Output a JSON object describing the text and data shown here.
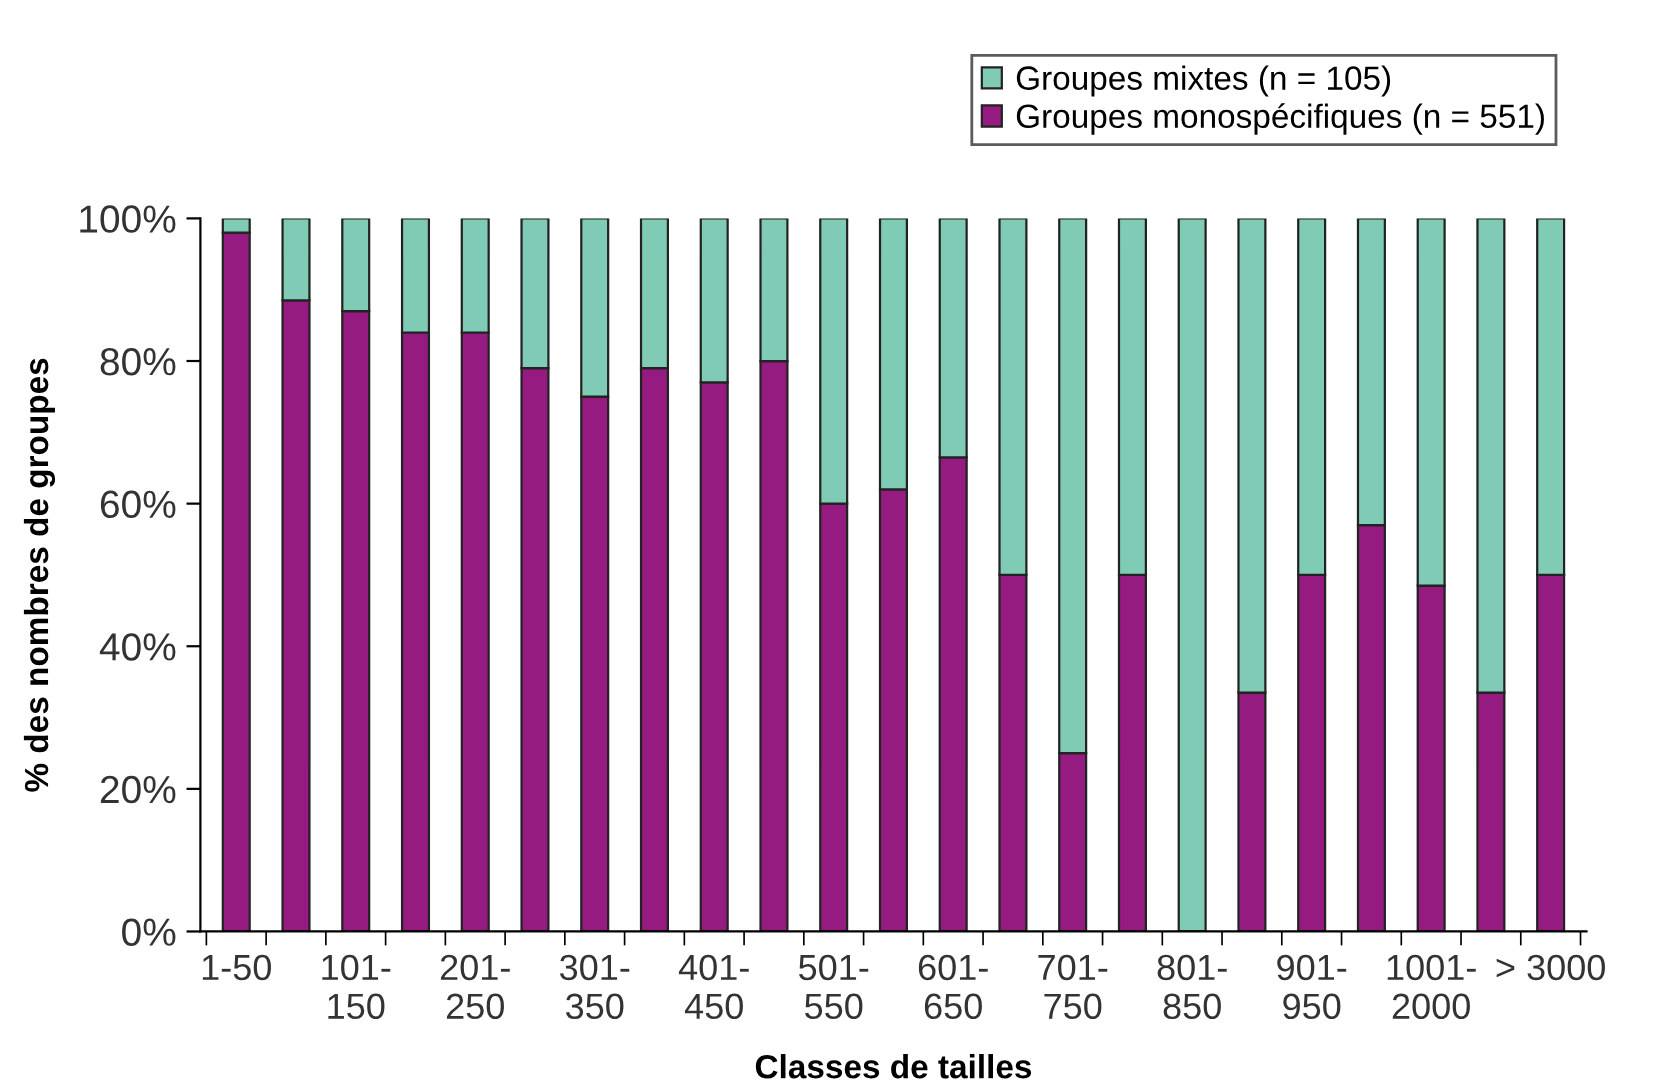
{
  "chart_data": {
    "type": "bar",
    "stacked": true,
    "xlabel": "Classes de tailles",
    "ylabel": "% des nombres de groupes",
    "categories": [
      "1-50",
      null,
      "101-\n150",
      null,
      "201-\n250",
      null,
      "301-\n350",
      null,
      "401-\n450",
      null,
      "501-\n550",
      null,
      "601-\n650",
      null,
      "701-\n750",
      null,
      "801-\n850",
      null,
      "901-\n950",
      null,
      "1001-\n2000",
      null,
      "> 3000"
    ],
    "series": [
      {
        "name": "Groupes monospécifiques (n = 551)",
        "color": "#951b81",
        "values": [
          98,
          88.5,
          87,
          84,
          84,
          79,
          75,
          79,
          77,
          80,
          60,
          62,
          66.5,
          50,
          25,
          50,
          0,
          33.5,
          50,
          57,
          48.5,
          33.5,
          50
        ]
      },
      {
        "name": "Groupes mixtes (n = 105)",
        "color": "#7fcbb5",
        "values": [
          2,
          11.5,
          13,
          16,
          16,
          21,
          25,
          21,
          23,
          20,
          40,
          38,
          33.5,
          50,
          75,
          50,
          100,
          66.5,
          50,
          43,
          51.5,
          66.5,
          50
        ]
      }
    ],
    "ylim": [
      0,
      100
    ],
    "yticks": [
      {
        "value": 0,
        "label": "0%"
      },
      {
        "value": 20,
        "label": "20%"
      },
      {
        "value": 40,
        "label": "40%"
      },
      {
        "value": 60,
        "label": "60%"
      },
      {
        "value": 80,
        "label": "80%"
      },
      {
        "value": 100,
        "label": "100%"
      }
    ],
    "grid": false,
    "legend": "top right"
  }
}
